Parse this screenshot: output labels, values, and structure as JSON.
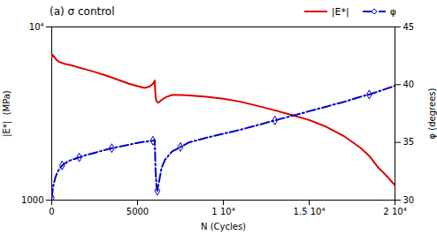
{
  "chart_data": {
    "type": "line",
    "title": "(a) σ control",
    "xlabel": "N (Cycles)",
    "ylabel": "|E*|  (MPa)",
    "y2label": "φ (degrees)",
    "xlim": [
      0,
      20000
    ],
    "xticks": [
      0,
      5000,
      {
        "value": 10000,
        "label": "1 10⁴"
      },
      {
        "value": 15000,
        "label": "1.5 10⁴"
      },
      {
        "value": 20000,
        "label": "2 10⁴"
      }
    ],
    "ylim": [
      1000,
      10000
    ],
    "yticks": [
      1000,
      {
        "value": 10000,
        "label": "10⁴"
      }
    ],
    "y2lim": [
      30,
      45
    ],
    "y2ticks": [
      30,
      35,
      40,
      45
    ],
    "log": "y",
    "grid": false,
    "legend": "upper right",
    "series": [
      {
        "name": "|E*|",
        "color": "#dd0000",
        "line_style": "solid",
        "x": [
          0,
          50,
          150,
          250,
          400,
          600,
          800,
          1000,
          1200,
          1400,
          1600,
          1800,
          2000,
          2500,
          3000,
          3500,
          4000,
          4500,
          5000,
          5400,
          5700,
          5900,
          6000,
          6050,
          6100,
          6150,
          6200,
          6250,
          6350,
          6500,
          6700,
          7000,
          7500,
          8000,
          9000,
          10000,
          11000,
          12000,
          13000,
          14000,
          15000,
          16000,
          17000,
          18000,
          18500,
          19000,
          19300,
          19600,
          19800,
          20000
        ],
        "values": [
          6700,
          6900,
          6700,
          6500,
          6300,
          6200,
          6100,
          6050,
          5980,
          5900,
          5820,
          5750,
          5680,
          5500,
          5300,
          5100,
          4900,
          4700,
          4550,
          4450,
          4520,
          4700,
          4900,
          3900,
          3750,
          3680,
          3650,
          3680,
          3750,
          3850,
          3950,
          4050,
          4050,
          4020,
          3950,
          3850,
          3700,
          3500,
          3300,
          3100,
          2900,
          2650,
          2350,
          2000,
          1800,
          1550,
          1450,
          1350,
          1280,
          1220
        ]
      },
      {
        "name": "φ",
        "color": "#0000cc",
        "axis": "y2",
        "line_style": "dashdot",
        "marker": "diamond",
        "x": [
          0,
          50,
          100,
          200,
          300,
          400,
          600,
          800,
          1000,
          1200,
          1400,
          1500,
          1600,
          1700,
          1800,
          2000,
          2500,
          3000,
          3500,
          4000,
          4500,
          5000,
          5400,
          5700,
          5900,
          6000,
          6050,
          6080,
          6100,
          6120,
          6150,
          6200,
          6300,
          6400,
          6600,
          7000,
          7500,
          8000,
          9000,
          10000,
          11000,
          12000,
          13000,
          14000,
          15000,
          16000,
          17000,
          18000,
          18500,
          19000,
          19500,
          20000
        ],
        "values": [
          30.2,
          30.8,
          31.3,
          31.9,
          32.3,
          32.6,
          33.0,
          33.2,
          33.4,
          33.5,
          33.6,
          33.65,
          33.7,
          33.75,
          33.8,
          33.9,
          34.1,
          34.3,
          34.5,
          34.65,
          34.8,
          34.95,
          35.05,
          35.1,
          35.15,
          35.2,
          32.5,
          31.8,
          31.3,
          31.0,
          30.8,
          31.2,
          32.0,
          32.8,
          33.5,
          34.2,
          34.6,
          35.0,
          35.4,
          35.75,
          36.1,
          36.5,
          36.9,
          37.3,
          37.7,
          38.1,
          38.5,
          38.95,
          39.15,
          39.4,
          39.65,
          39.9
        ]
      }
    ]
  }
}
